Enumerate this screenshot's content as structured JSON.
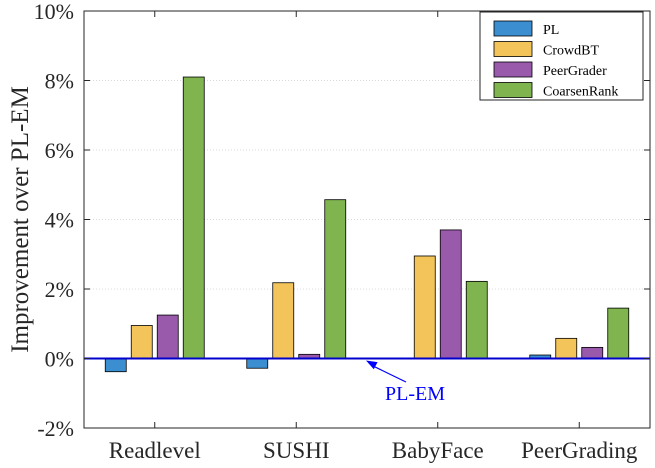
{
  "chart_data": {
    "type": "bar",
    "categories": [
      "Readlevel",
      "SUSHI",
      "BabyFace",
      "PeerGrading"
    ],
    "series": [
      {
        "name": "PL",
        "color": "#3b8fd0",
        "values": [
          -0.38,
          -0.28,
          0.0,
          0.1
        ]
      },
      {
        "name": "CrowdBT",
        "color": "#f2c45a",
        "values": [
          0.95,
          2.18,
          2.95,
          0.58
        ]
      },
      {
        "name": "PeerGrader",
        "color": "#9a5aac",
        "values": [
          1.25,
          0.12,
          3.7,
          0.32
        ]
      },
      {
        "name": "CoarsenRank",
        "color": "#7fb44e",
        "values": [
          8.1,
          4.57,
          2.22,
          1.45
        ]
      }
    ],
    "ylabel": "Improvement over PL-EM",
    "ylim": [
      -2,
      10
    ],
    "yticks": [
      "-2%",
      "0%",
      "2%",
      "4%",
      "6%",
      "8%",
      "10%"
    ],
    "grid": true,
    "legend": "top-right",
    "annotation": "PL-EM",
    "baseline_color": "#0000cc"
  }
}
